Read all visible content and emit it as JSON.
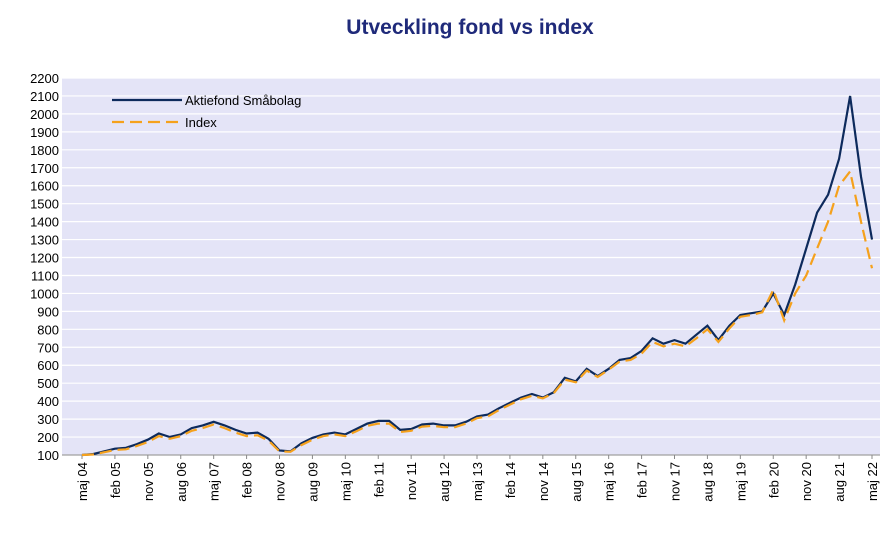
{
  "chart_data": {
    "type": "line",
    "title": "Utveckling fond vs index",
    "categories": [
      "maj 04",
      null,
      null,
      "feb 05",
      null,
      null,
      "nov 05",
      null,
      null,
      "aug 06",
      null,
      null,
      "maj 07",
      null,
      null,
      "feb 08",
      null,
      null,
      "nov 08",
      null,
      null,
      "aug 09",
      null,
      null,
      "maj 10",
      null,
      null,
      "feb 11",
      null,
      null,
      "nov 11",
      null,
      null,
      "aug 12",
      null,
      null,
      "maj 13",
      null,
      null,
      "feb 14",
      null,
      null,
      "nov 14",
      null,
      null,
      "aug 15",
      null,
      null,
      "maj 16",
      null,
      null,
      "feb 17",
      null,
      null,
      "nov 17",
      null,
      null,
      "aug 18",
      null,
      null,
      "maj 19",
      null,
      null,
      "feb 20",
      null,
      null,
      "nov 20",
      null,
      null,
      "aug 21",
      null,
      null,
      "maj 22"
    ],
    "series": [
      {
        "name": "Aktiefond Småbolag",
        "color": "#0d2a5c",
        "dash": "none",
        "values": [
          100,
          105,
          120,
          135,
          140,
          160,
          185,
          220,
          200,
          215,
          250,
          265,
          285,
          265,
          240,
          220,
          225,
          190,
          125,
          120,
          165,
          195,
          215,
          225,
          215,
          245,
          275,
          290,
          290,
          240,
          245,
          270,
          275,
          265,
          265,
          285,
          315,
          325,
          360,
          390,
          420,
          440,
          420,
          450,
          530,
          510,
          580,
          540,
          580,
          630,
          640,
          680,
          750,
          720,
          740,
          720,
          770,
          820,
          740,
          820,
          880,
          890,
          900,
          1000,
          880,
          1050,
          1250,
          1450,
          1550,
          1750,
          2100,
          1650,
          1300
        ]
      },
      {
        "name": "Index",
        "color": "#f5a11c",
        "dash": "12 6",
        "values": [
          100,
          103,
          115,
          128,
          132,
          150,
          172,
          205,
          190,
          205,
          235,
          250,
          270,
          250,
          225,
          205,
          210,
          180,
          120,
          118,
          155,
          185,
          205,
          215,
          205,
          232,
          262,
          275,
          275,
          228,
          235,
          258,
          262,
          255,
          255,
          275,
          305,
          315,
          350,
          380,
          410,
          430,
          415,
          445,
          520,
          505,
          570,
          535,
          575,
          620,
          630,
          665,
          730,
          705,
          720,
          705,
          750,
          800,
          730,
          805,
          870,
          880,
          895,
          1020,
          850,
          1000,
          1100,
          1250,
          1400,
          1600,
          1680,
          1400,
          1140
        ]
      }
    ],
    "ylim": [
      100,
      2200
    ],
    "yticks": [
      100,
      200,
      300,
      400,
      500,
      600,
      700,
      800,
      900,
      1000,
      1100,
      1200,
      1300,
      1400,
      1500,
      1600,
      1700,
      1800,
      1900,
      2000,
      2100,
      2200
    ],
    "grid": true
  }
}
